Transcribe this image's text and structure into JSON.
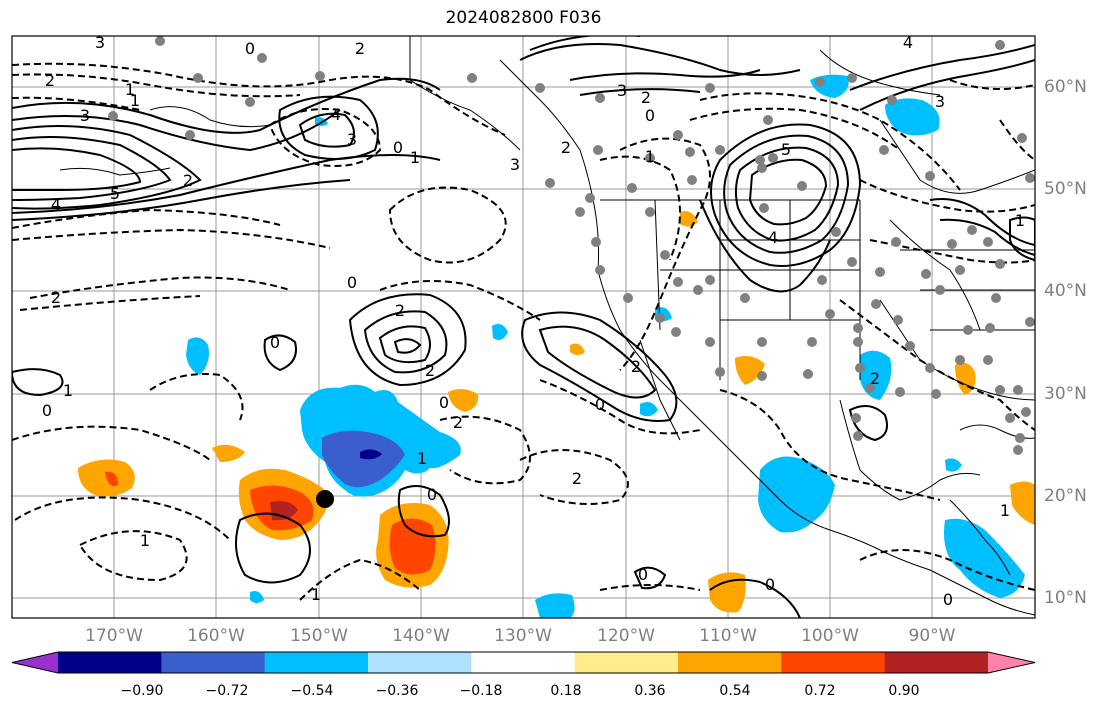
{
  "title": "2024082800 F036",
  "lat_labels": [
    "60°N",
    "50°N",
    "40°N",
    "30°N",
    "20°N",
    "10°N"
  ],
  "lon_labels": [
    "170°W",
    "160°W",
    "150°W",
    "140°W",
    "130°W",
    "120°W",
    "110°W",
    "100°W",
    "90°W"
  ],
  "colorbar": {
    "ticks": [
      "−0.90",
      "−0.72",
      "−0.54",
      "−0.36",
      "−0.18",
      "0.18",
      "0.36",
      "0.54",
      "0.72",
      "0.90"
    ],
    "colors": [
      "#9932cc",
      "#00008b",
      "#3a5fcd",
      "#00bfff",
      "#b0e2ff",
      "#ffffff",
      "#ffec8b",
      "#ffa500",
      "#ff4500",
      "#b22222",
      "#ff82ab"
    ]
  },
  "contour_labels": [
    "3",
    "2",
    "1",
    "3",
    "0",
    "2",
    "4",
    "5",
    "4",
    "3",
    "1",
    "0",
    "3",
    "2",
    "2",
    "0",
    "1",
    "3",
    "4",
    "5",
    "2",
    "0",
    "2",
    "1",
    "3",
    "4",
    "2",
    "0",
    "2",
    "1",
    "0",
    "1",
    "0",
    "2",
    "0",
    "1",
    "0",
    "2",
    "1",
    "1",
    "2",
    "0",
    "0",
    "1",
    "2",
    "0"
  ]
}
